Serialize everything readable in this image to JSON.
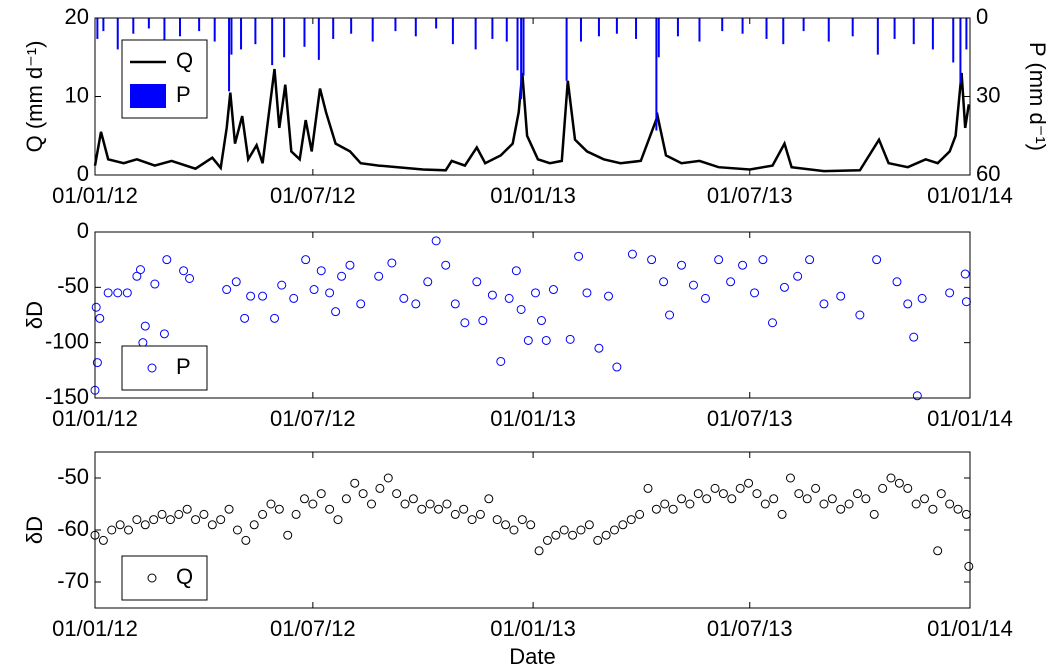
{
  "chart_data": [
    {
      "type": "line",
      "ylabel": "Q (mm d⁻¹)",
      "y2label": "P (mm d⁻¹)",
      "legend": "upper left",
      "xlim": [
        "01/01/12",
        "01/01/14"
      ],
      "xticks": [
        "01/01/12",
        "01/07/12",
        "01/01/13",
        "01/07/13",
        "01/01/14"
      ],
      "ylim": [
        0,
        20
      ],
      "yticks": [
        0,
        10,
        20
      ],
      "y2lim": [
        0,
        60
      ],
      "y2ticks": [
        0,
        30,
        60
      ],
      "y2_reversed": true,
      "series": [
        {
          "name": "Q",
          "color": "#000000",
          "x": [
            "01/01/12",
            "06/01/12",
            "12/01/12",
            "25/01/12",
            "05/02/12",
            "20/02/12",
            "05/03/12",
            "25/03/12",
            "08/04/12",
            "15/04/12",
            "20/04/12",
            "23/04/12",
            "27/04/12",
            "03/05/12",
            "08/05/12",
            "15/05/12",
            "20/05/12",
            "30/05/12",
            "03/06/12",
            "08/06/12",
            "13/06/12",
            "20/06/12",
            "25/06/12",
            "30/06/12",
            "07/07/12",
            "12/07/12",
            "20/07/12",
            "01/08/12",
            "10/08/12",
            "25/08/12",
            "10/09/12",
            "01/10/12",
            "20/10/12",
            "25/10/12",
            "05/11/12",
            "15/11/12",
            "22/11/12",
            "05/12/12",
            "15/12/12",
            "20/12/12",
            "23/12/12",
            "27/12/12",
            "05/01/13",
            "15/01/13",
            "25/01/13",
            "30/01/13",
            "05/02/13",
            "15/02/13",
            "01/03/13",
            "15/03/13",
            "01/04/13",
            "15/04/13",
            "22/04/13",
            "05/05/13",
            "20/05/13",
            "05/06/13",
            "01/07/13",
            "20/07/13",
            "30/07/13",
            "05/08/13",
            "01/09/13",
            "01/10/13",
            "17/10/13",
            "25/10/13",
            "10/11/13",
            "25/11/13",
            "05/12/13",
            "15/12/13",
            "20/12/13",
            "25/12/13",
            "28/12/13",
            "31/12/13"
          ],
          "values": [
            1.2,
            5.5,
            2,
            1.5,
            2,
            1.2,
            1.8,
            0.8,
            2.2,
            0.9,
            6,
            10.5,
            4,
            7.5,
            2,
            3.8,
            1.5,
            13.5,
            6,
            11.5,
            3,
            2,
            7,
            3,
            11,
            8,
            4,
            3,
            1.5,
            1.2,
            1,
            0.7,
            0.6,
            1.8,
            1.2,
            3.5,
            1.5,
            2.5,
            4,
            8,
            13,
            5,
            2,
            1.5,
            1.8,
            12,
            4.5,
            3,
            2,
            1.5,
            1.8,
            7.5,
            2.5,
            1.5,
            1.8,
            1,
            0.7,
            1.2,
            4,
            1,
            0.5,
            0.6,
            4.5,
            1.5,
            1,
            2,
            1.5,
            3,
            5,
            13,
            6,
            9
          ]
        },
        {
          "name": "P",
          "color": "#0000ff",
          "type": "bar",
          "axis": "y2",
          "x": [
            "03/01/12",
            "08/01/12",
            "20/01/12",
            "02/02/12",
            "15/02/12",
            "28/02/12",
            "12/03/12",
            "28/03/12",
            "10/04/12",
            "22/04/12",
            "24/04/12",
            "02/05/12",
            "14/05/12",
            "28/05/12",
            "07/06/12",
            "24/06/12",
            "06/07/12",
            "18/07/12",
            "02/08/12",
            "20/08/12",
            "08/09/12",
            "25/09/12",
            "12/10/12",
            "26/10/12",
            "14/11/12",
            "28/11/12",
            "10/12/12",
            "19/12/12",
            "22/12/12",
            "24/12/12",
            "29/01/13",
            "10/02/13",
            "25/02/13",
            "12/03/13",
            "28/03/13",
            "14/04/13",
            "16/04/13",
            "02/05/13",
            "20/05/13",
            "08/06/13",
            "25/06/13",
            "15/07/13",
            "29/07/13",
            "15/08/13",
            "05/09/13",
            "25/09/13",
            "16/10/13",
            "30/10/13",
            "15/11/13",
            "01/12/13",
            "18/12/13",
            "24/12/13",
            "29/12/13"
          ],
          "values": [
            8,
            5,
            12,
            6,
            4,
            10,
            7,
            5,
            9,
            28,
            14,
            12,
            10,
            18,
            15,
            11,
            16,
            8,
            6,
            9,
            5,
            7,
            4,
            10,
            12,
            8,
            9,
            20,
            31,
            22,
            24,
            9,
            7,
            6,
            8,
            43,
            15,
            7,
            9,
            5,
            6,
            8,
            10,
            5,
            9,
            7,
            14,
            8,
            10,
            12,
            17,
            25,
            12
          ]
        }
      ]
    },
    {
      "type": "scatter",
      "ylabel": "δD",
      "legend": "lower left",
      "xlim": [
        "01/01/12",
        "01/01/14"
      ],
      "xticks": [
        "01/01/12",
        "01/07/12",
        "01/01/13",
        "01/07/13",
        "01/01/14"
      ],
      "ylim": [
        -150,
        0
      ],
      "yticks": [
        -150,
        -100,
        -50,
        0
      ],
      "series": [
        {
          "name": "P",
          "color": "#0000ff",
          "x": [
            "01/01/12",
            "03/01/12",
            "05/01/12",
            "02/01/12",
            "12/01/12",
            "20/01/12",
            "28/01/12",
            "05/02/12",
            "08/02/12",
            "10/02/12",
            "12/02/12",
            "20/02/12",
            "28/02/12",
            "01/03/12",
            "15/03/12",
            "20/03/12",
            "20/04/12",
            "28/04/12",
            "05/05/12",
            "10/05/12",
            "20/05/12",
            "30/05/12",
            "05/06/12",
            "15/06/12",
            "25/06/12",
            "02/07/12",
            "08/07/12",
            "15/07/12",
            "20/07/12",
            "25/07/12",
            "01/08/12",
            "10/08/12",
            "25/08/12",
            "05/09/12",
            "15/09/12",
            "25/09/12",
            "05/10/12",
            "12/10/12",
            "20/10/12",
            "28/10/12",
            "05/11/12",
            "15/11/12",
            "20/11/12",
            "28/11/12",
            "05/12/12",
            "12/12/12",
            "18/12/12",
            "22/12/12",
            "28/12/12",
            "03/01/13",
            "08/01/13",
            "12/01/13",
            "18/01/13",
            "01/02/13",
            "08/02/13",
            "15/02/13",
            "25/02/13",
            "05/03/13",
            "12/03/13",
            "25/03/13",
            "10/04/13",
            "20/04/13",
            "25/04/13",
            "05/05/13",
            "15/05/13",
            "25/05/13",
            "05/06/13",
            "15/06/13",
            "25/06/13",
            "05/07/13",
            "12/07/13",
            "20/07/13",
            "30/07/13",
            "10/08/13",
            "20/08/13",
            "01/09/13",
            "15/09/13",
            "01/10/13",
            "15/10/13",
            "01/11/13",
            "10/11/13",
            "15/11/13",
            "18/11/13",
            "22/11/13",
            "15/12/13",
            "28/12/13",
            "29/12/13"
          ],
          "values": [
            -143,
            -118,
            -78,
            -68,
            -55,
            -55,
            -55,
            -40,
            -34,
            -100,
            -85,
            -47,
            -92,
            -25,
            -35,
            -42,
            -52,
            -45,
            -78,
            -58,
            -58,
            -78,
            -48,
            -60,
            -25,
            -52,
            -35,
            -55,
            -72,
            -40,
            -30,
            -65,
            -40,
            -28,
            -60,
            -65,
            -45,
            -8,
            -30,
            -65,
            -82,
            -45,
            -80,
            -57,
            -117,
            -60,
            -35,
            -70,
            -98,
            -55,
            -80,
            -98,
            -52,
            -97,
            -22,
            -55,
            -105,
            -58,
            -122,
            -20,
            -25,
            -45,
            -75,
            -30,
            -48,
            -60,
            -25,
            -45,
            -30,
            -55,
            -25,
            -82,
            -50,
            -40,
            -25,
            -65,
            -58,
            -75,
            -25,
            -45,
            -65,
            -95,
            -148,
            -60,
            -55,
            -38,
            -63
          ]
        }
      ]
    },
    {
      "type": "scatter",
      "ylabel": "δD",
      "xlabel": "Date",
      "legend": "lower left",
      "xlim": [
        "01/01/12",
        "01/01/14"
      ],
      "xticks": [
        "01/01/12",
        "01/07/12",
        "01/01/13",
        "01/07/13",
        "01/01/14"
      ],
      "ylim": [
        -75,
        -45
      ],
      "yticks": [
        -70,
        -60,
        -50
      ],
      "series": [
        {
          "name": "Q",
          "color": "#000000",
          "x": [
            "01/01/12",
            "08/01/12",
            "15/01/12",
            "22/01/12",
            "29/01/12",
            "05/02/12",
            "12/02/12",
            "19/02/12",
            "26/02/12",
            "04/03/12",
            "11/03/12",
            "18/03/12",
            "25/03/12",
            "01/04/12",
            "08/04/12",
            "15/04/12",
            "22/04/12",
            "29/04/12",
            "06/05/12",
            "13/05/12",
            "20/05/12",
            "27/05/12",
            "03/06/12",
            "10/06/12",
            "17/06/12",
            "24/06/12",
            "01/07/12",
            "08/07/12",
            "15/07/12",
            "22/07/12",
            "29/07/12",
            "05/08/12",
            "12/08/12",
            "19/08/12",
            "26/08/12",
            "02/09/12",
            "09/09/12",
            "16/09/12",
            "23/09/12",
            "30/09/12",
            "07/10/12",
            "14/10/12",
            "21/10/12",
            "28/10/12",
            "04/11/12",
            "11/11/12",
            "18/11/12",
            "25/11/12",
            "02/12/12",
            "09/12/12",
            "16/12/12",
            "23/12/12",
            "30/12/12",
            "06/01/13",
            "13/01/13",
            "20/01/13",
            "27/01/13",
            "03/02/13",
            "10/02/13",
            "17/02/13",
            "24/02/13",
            "03/03/13",
            "10/03/13",
            "17/03/13",
            "24/03/13",
            "31/03/13",
            "07/04/13",
            "14/04/13",
            "21/04/13",
            "28/04/13",
            "05/05/13",
            "12/05/13",
            "19/05/13",
            "26/05/13",
            "02/06/13",
            "09/06/13",
            "16/06/13",
            "23/06/13",
            "30/06/13",
            "07/07/13",
            "14/07/13",
            "21/07/13",
            "28/07/13",
            "04/08/13",
            "11/08/13",
            "18/08/13",
            "25/08/13",
            "01/09/13",
            "08/09/13",
            "15/09/13",
            "22/09/13",
            "29/09/13",
            "06/10/13",
            "13/10/13",
            "20/10/13",
            "27/10/13",
            "03/11/13",
            "10/11/13",
            "17/11/13",
            "24/11/13",
            "01/12/13",
            "05/12/13",
            "08/12/13",
            "15/12/13",
            "22/12/13",
            "29/12/13",
            "31/12/13"
          ],
          "values": [
            -61,
            -62,
            -60,
            -59,
            -60,
            -58,
            -59,
            -58,
            -57,
            -58,
            -57,
            -56,
            -58,
            -57,
            -59,
            -58,
            -56,
            -60,
            -62,
            -59,
            -57,
            -55,
            -56,
            -61,
            -57,
            -54,
            -55,
            -53,
            -56,
            -58,
            -54,
            -51,
            -53,
            -55,
            -52,
            -50,
            -53,
            -55,
            -54,
            -56,
            -55,
            -56,
            -55,
            -57,
            -56,
            -58,
            -57,
            -54,
            -58,
            -59,
            -60,
            -58,
            -59,
            -64,
            -62,
            -61,
            -60,
            -61,
            -60,
            -59,
            -62,
            -61,
            -60,
            -59,
            -58,
            -57,
            -52,
            -56,
            -55,
            -56,
            -54,
            -55,
            -53,
            -54,
            -52,
            -53,
            -54,
            -52,
            -51,
            -53,
            -55,
            -54,
            -57,
            -50,
            -53,
            -54,
            -52,
            -55,
            -54,
            -56,
            -55,
            -53,
            -54,
            -57,
            -52,
            -50,
            -51,
            -52,
            -55,
            -54,
            -56,
            -64,
            -53,
            -55,
            -56,
            -57,
            -67
          ]
        }
      ]
    }
  ]
}
